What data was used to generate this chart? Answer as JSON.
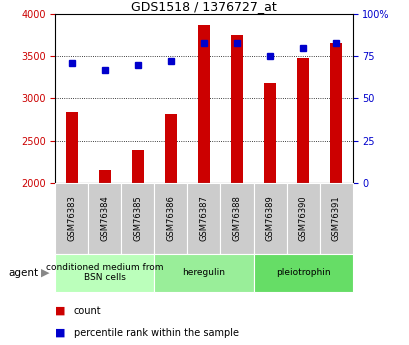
{
  "title": "GDS1518 / 1376727_at",
  "samples": [
    "GSM76383",
    "GSM76384",
    "GSM76385",
    "GSM76386",
    "GSM76387",
    "GSM76388",
    "GSM76389",
    "GSM76390",
    "GSM76391"
  ],
  "counts": [
    2840,
    2155,
    2385,
    2820,
    3870,
    3750,
    3185,
    3480,
    3655
  ],
  "percentiles": [
    71,
    67,
    70,
    72,
    83,
    83,
    75,
    80,
    83
  ],
  "ylim_left": [
    2000,
    4000
  ],
  "ylim_right": [
    0,
    100
  ],
  "yticks_left": [
    2000,
    2500,
    3000,
    3500,
    4000
  ],
  "ytick_labels_left": [
    "2000",
    "2500",
    "3000",
    "3500",
    "4000"
  ],
  "yticks_right": [
    0,
    25,
    50,
    75,
    100
  ],
  "ytick_labels_right": [
    "0",
    "25",
    "50",
    "75",
    "100%"
  ],
  "bar_color": "#cc0000",
  "dot_color": "#0000cc",
  "groups": [
    {
      "label": "conditioned medium from\nBSN cells",
      "start": 0,
      "end": 3,
      "color": "#bbffbb"
    },
    {
      "label": "heregulin",
      "start": 3,
      "end": 6,
      "color": "#99ee99"
    },
    {
      "label": "pleiotrophin",
      "start": 6,
      "end": 9,
      "color": "#66dd66"
    }
  ],
  "agent_label": "agent",
  "legend_count_label": "count",
  "legend_percentile_label": "percentile rank within the sample",
  "bg_color": "#ffffff",
  "plot_bg_color": "#ffffff",
  "tick_area_bg": "#cccccc",
  "grid_color": "#000000",
  "bar_width": 0.35
}
